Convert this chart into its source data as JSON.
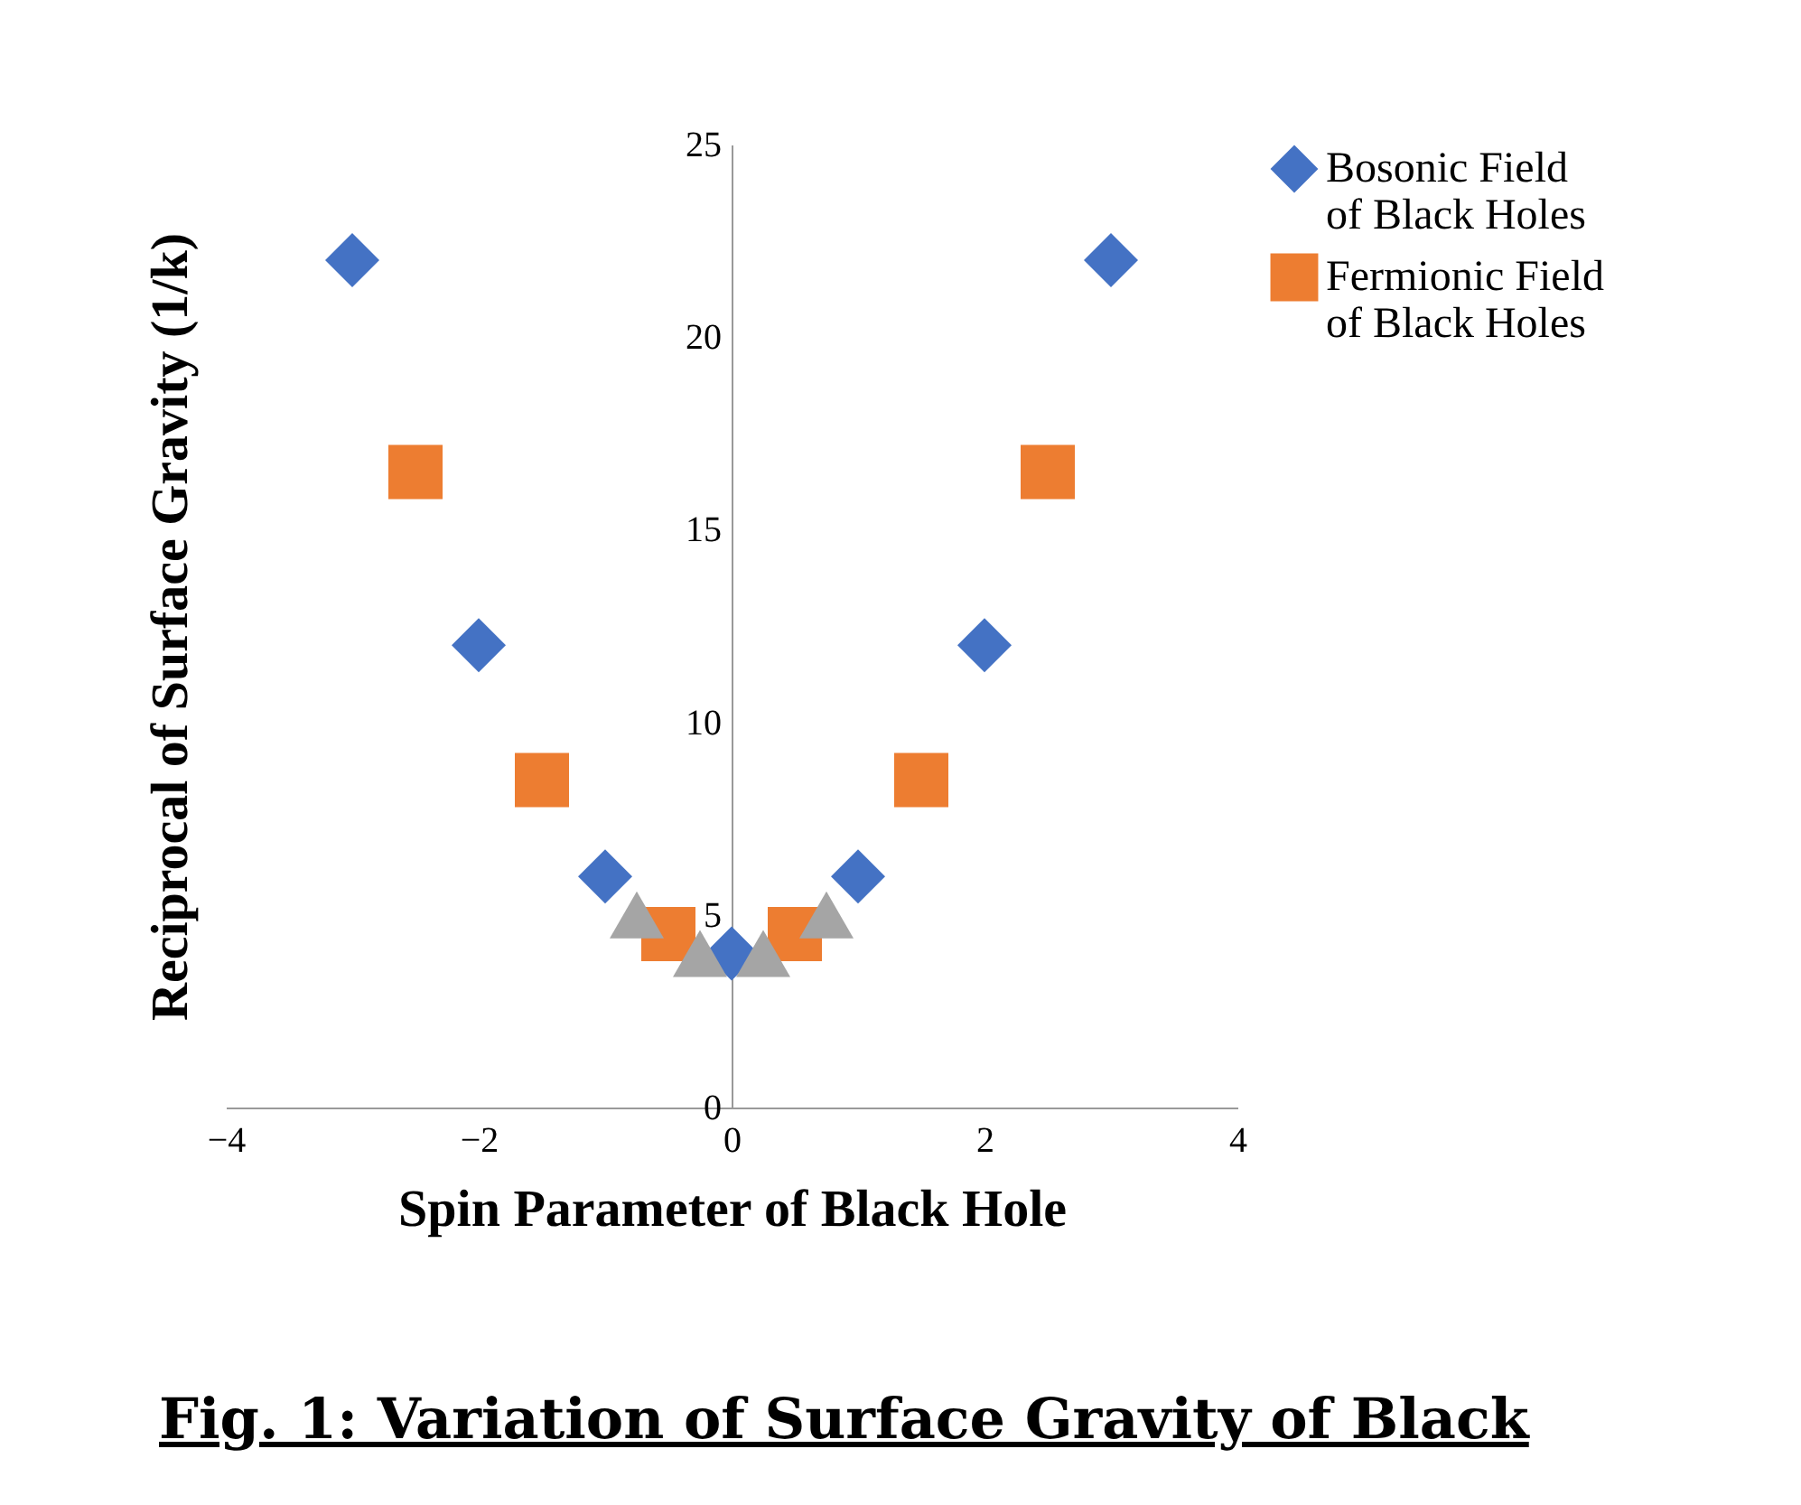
{
  "chart_data": {
    "type": "scatter",
    "title": "Fig. 1: Variation of Surface Gravity of Black",
    "xlabel": "Spin Parameter of Black Hole",
    "ylabel": "Reciprocal of Surface Gravity (1/k)",
    "xlim": [
      -4,
      4
    ],
    "xticks": [
      -4,
      -2,
      0,
      2,
      4
    ],
    "ylim": [
      0,
      25
    ],
    "yticks": [
      0,
      5,
      10,
      15,
      20,
      25
    ],
    "grid": false,
    "legend": "right",
    "series": [
      {
        "name": "Bosonic Field of Black Holes",
        "color": "#4472c4",
        "marker": "diamond",
        "x": [
          -3,
          -2,
          -1,
          0,
          1,
          2,
          3
        ],
        "values": [
          22,
          12,
          6,
          4,
          6,
          12,
          22
        ]
      },
      {
        "name": "Fermionic Field of Black Holes",
        "color": "#ed7d31",
        "marker": "square",
        "x": [
          -2.5,
          -1.5,
          -0.5,
          0.5,
          1.5,
          2.5
        ],
        "values": [
          16.5,
          8.5,
          4.5,
          4.5,
          8.5,
          16.5
        ]
      },
      {
        "color": "#a5a5a5",
        "marker": "triangle",
        "x": [
          -0.75,
          -0.25,
          0.25,
          0.75
        ],
        "values": [
          5,
          4,
          4,
          5
        ]
      }
    ]
  }
}
